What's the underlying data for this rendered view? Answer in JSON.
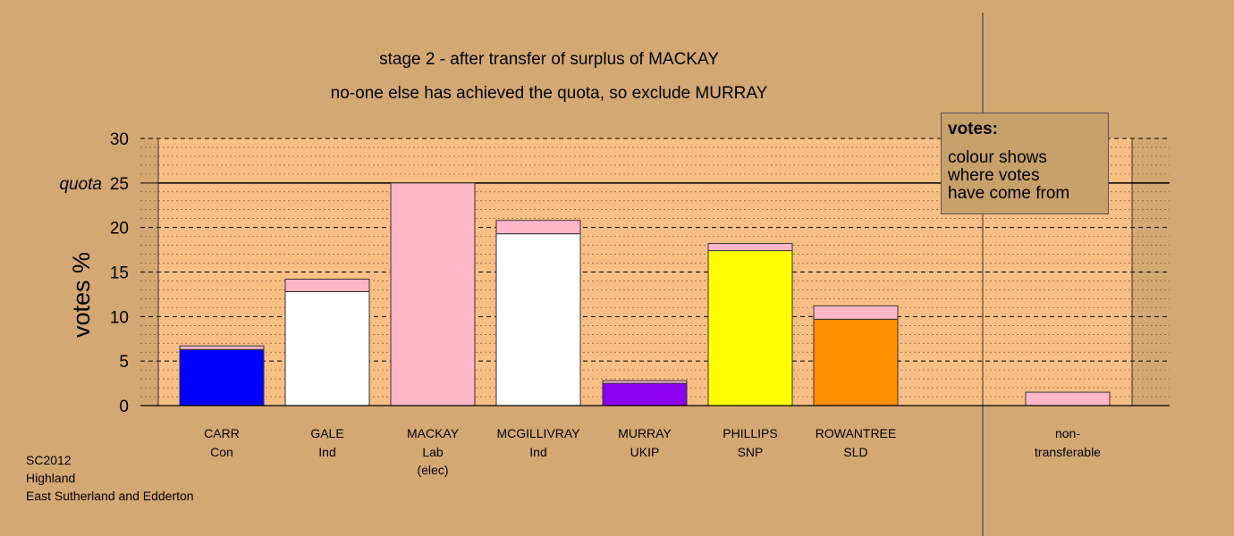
{
  "titles": {
    "line1": "stage 2 - after transfer of surplus of MACKAY",
    "line2": "no-one else has achieved the quota, so exclude MURRAY"
  },
  "legend": {
    "heading": "votes:",
    "lines": [
      "colour shows",
      "where votes",
      "have come from"
    ]
  },
  "footer": [
    "SC2012",
    "Highland",
    "East Sutherland and Edderton"
  ],
  "colors": {
    "background": "#d4a873",
    "plot_area": "#f7bf84",
    "transfer": "#ffb6c8"
  },
  "chart_data": {
    "type": "bar",
    "stacked": true,
    "ylabel": "votes %",
    "ylim": [
      0,
      30
    ],
    "yticks": [
      "0",
      "5",
      "10",
      "15",
      "20",
      "25",
      "30"
    ],
    "quota": {
      "value": 25,
      "label": "quota"
    },
    "grid": true,
    "categories": [
      {
        "name": "CARR",
        "party": "Con",
        "extra": ""
      },
      {
        "name": "GALE",
        "party": "Ind",
        "extra": ""
      },
      {
        "name": "MACKAY",
        "party": "Lab",
        "extra": "(elec)"
      },
      {
        "name": "MCGILLIVRAY",
        "party": "Ind",
        "extra": ""
      },
      {
        "name": "MURRAY",
        "party": "UKIP",
        "extra": ""
      },
      {
        "name": "PHILLIPS",
        "party": "SNP",
        "extra": ""
      },
      {
        "name": "ROWANTREE",
        "party": "SLD",
        "extra": ""
      },
      {
        "name": "non-",
        "party": "transferable",
        "extra": ""
      }
    ],
    "series": [
      {
        "color": "#ffb6c8",
        "values_base": [
          6.3,
          12.8,
          25.0,
          19.3,
          2.5,
          17.4,
          9.7,
          0
        ],
        "colors_base": [
          "#0000ff",
          "#ffffff",
          "#ffb6c8",
          "#ffffff",
          "#8b00ee",
          "#ffff00",
          "#ff9000",
          "#ffb6c8"
        ]
      },
      {
        "color": "#ffb6c8",
        "values_transfer": [
          0.4,
          1.4,
          0,
          1.5,
          0.3,
          0.8,
          1.5,
          1.5
        ]
      }
    ]
  }
}
